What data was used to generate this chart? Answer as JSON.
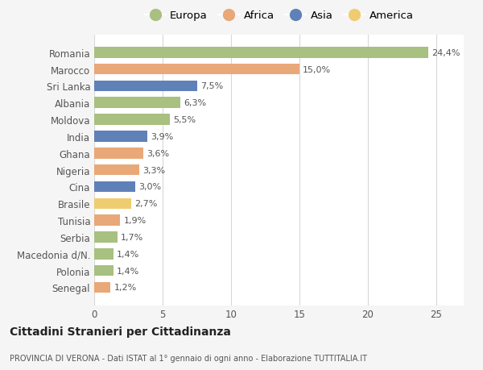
{
  "categories": [
    "Romania",
    "Marocco",
    "Sri Lanka",
    "Albania",
    "Moldova",
    "India",
    "Ghana",
    "Nigeria",
    "Cina",
    "Brasile",
    "Tunisia",
    "Serbia",
    "Macedonia d/N.",
    "Polonia",
    "Senegal"
  ],
  "values": [
    24.4,
    15.0,
    7.5,
    6.3,
    5.5,
    3.9,
    3.6,
    3.3,
    3.0,
    2.7,
    1.9,
    1.7,
    1.4,
    1.4,
    1.2
  ],
  "continents": [
    "Europa",
    "Africa",
    "Asia",
    "Europa",
    "Europa",
    "Asia",
    "Africa",
    "Africa",
    "Asia",
    "America",
    "Africa",
    "Europa",
    "Europa",
    "Europa",
    "Africa"
  ],
  "colors": {
    "Europa": "#a8c080",
    "Africa": "#e8a878",
    "Asia": "#6080b8",
    "America": "#f0cc70"
  },
  "legend_order": [
    "Europa",
    "Africa",
    "Asia",
    "America"
  ],
  "title1": "Cittadini Stranieri per Cittadinanza",
  "title2": "PROVINCIA DI VERONA - Dati ISTAT al 1° gennaio di ogni anno - Elaborazione TUTTITALIA.IT",
  "xlim": [
    0,
    27
  ],
  "xticks": [
    0,
    5,
    10,
    15,
    20,
    25
  ],
  "background_color": "#f5f5f5",
  "plot_background": "#ffffff",
  "grid_color": "#d8d8d8",
  "label_color": "#555555",
  "value_label_color": "#555555",
  "bar_height": 0.65
}
